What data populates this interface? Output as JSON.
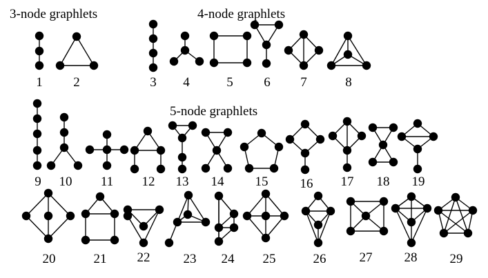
{
  "headings": {
    "three_node": "3-node graphlets",
    "four_node": "4-node graphlets",
    "five_node": "5-node graphlets"
  },
  "graphlets": [
    {
      "label": "1"
    },
    {
      "label": "2"
    },
    {
      "label": "3"
    },
    {
      "label": "4"
    },
    {
      "label": "5"
    },
    {
      "label": "6"
    },
    {
      "label": "7"
    },
    {
      "label": "8"
    },
    {
      "label": "9"
    },
    {
      "label": "10"
    },
    {
      "label": "11"
    },
    {
      "label": "12"
    },
    {
      "label": "13"
    },
    {
      "label": "14"
    },
    {
      "label": "15"
    },
    {
      "label": "16"
    },
    {
      "label": "17"
    },
    {
      "label": "18"
    },
    {
      "label": "19"
    },
    {
      "label": "20"
    },
    {
      "label": "21"
    },
    {
      "label": "22"
    },
    {
      "label": "23"
    },
    {
      "label": "24"
    },
    {
      "label": "25"
    },
    {
      "label": "26"
    },
    {
      "label": "27"
    },
    {
      "label": "28"
    },
    {
      "label": "29"
    }
  ]
}
